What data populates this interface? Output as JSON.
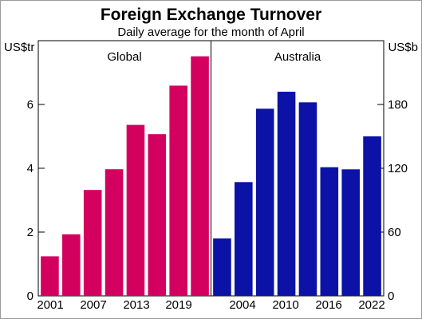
{
  "header": {
    "title": "Foreign Exchange Turnover",
    "subtitle": "Daily average for the month of April"
  },
  "chart_data": [
    {
      "type": "bar",
      "panel_title": "Global",
      "unit": "US$tr",
      "axis_side": "left",
      "color": "#d4005f",
      "x": [
        2001,
        2004,
        2007,
        2010,
        2013,
        2016,
        2019,
        2022
      ],
      "values": [
        1.24,
        1.93,
        3.32,
        3.97,
        5.36,
        5.07,
        6.59,
        7.51
      ],
      "xticks": [
        "2001",
        "2007",
        "2013",
        "2019"
      ],
      "ylim": [
        0,
        8
      ],
      "yticks": [
        "0",
        "2",
        "4",
        "6"
      ],
      "grid": false
    },
    {
      "type": "bar",
      "panel_title": "Australia",
      "unit": "US$b",
      "axis_side": "right",
      "color": "#0b12a5",
      "x": [
        2001,
        2004,
        2007,
        2010,
        2013,
        2016,
        2019,
        2022
      ],
      "values": [
        54,
        107,
        176,
        192,
        182,
        121,
        119,
        150
      ],
      "xticks": [
        "2004",
        "2010",
        "2016",
        "2022"
      ],
      "ylim": [
        0,
        240
      ],
      "yticks": [
        "0",
        "60",
        "120",
        "180"
      ],
      "grid": false
    }
  ]
}
